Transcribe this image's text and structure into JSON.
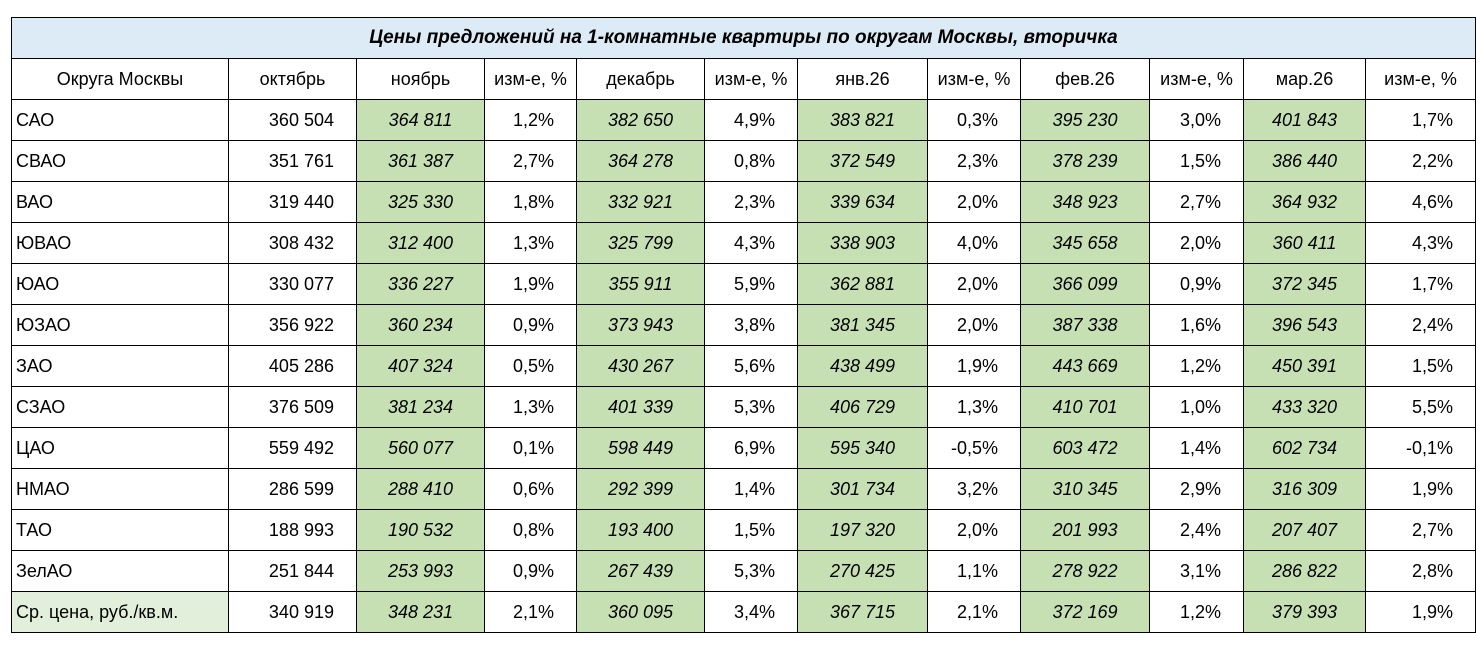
{
  "title": "Цены предложений на 1-комнатные квартиры по округам Москвы, вторичка",
  "headers": [
    "Округа Москвы",
    "октябрь",
    "ноябрь",
    "изм-е, %",
    "декабрь",
    "изм-е, %",
    "янв.26",
    "изм-е, %",
    "фев.26",
    "изм-е, %",
    "мар.26",
    "изм-е, %"
  ],
  "colors": {
    "title_bg": "#DDEBF7",
    "positive": "#C6E0B4",
    "negative": "#F4B084",
    "avg_label_bg": "#E2EFDA"
  },
  "rows": [
    [
      "САО",
      "360 504",
      "364 811",
      "1,2%",
      "382 650",
      "4,9%",
      "383 821",
      "0,3%",
      "395 230",
      "3,0%",
      "401 843",
      "1,7%"
    ],
    [
      "СВАО",
      "351 761",
      "361 387",
      "2,7%",
      "364 278",
      "0,8%",
      "372 549",
      "2,3%",
      "378 239",
      "1,5%",
      "386 440",
      "2,2%"
    ],
    [
      "ВАО",
      "319 440",
      "325 330",
      "1,8%",
      "332 921",
      "2,3%",
      "339 634",
      "2,0%",
      "348 923",
      "2,7%",
      "364 932",
      "4,6%"
    ],
    [
      "ЮВАО",
      "308 432",
      "312 400",
      "1,3%",
      "325 799",
      "4,3%",
      "338 903",
      "4,0%",
      "345 658",
      "2,0%",
      "360 411",
      "4,3%"
    ],
    [
      "ЮАО",
      "330 077",
      "336 227",
      "1,9%",
      "355 911",
      "5,9%",
      "362 881",
      "2,0%",
      "366 099",
      "0,9%",
      "372 345",
      "1,7%"
    ],
    [
      "ЮЗАО",
      "356 922",
      "360 234",
      "0,9%",
      "373 943",
      "3,8%",
      "381 345",
      "2,0%",
      "387 338",
      "1,6%",
      "396 543",
      "2,4%"
    ],
    [
      "ЗАО",
      "405 286",
      "407 324",
      "0,5%",
      "430 267",
      "5,6%",
      "438 499",
      "1,9%",
      "443 669",
      "1,2%",
      "450 391",
      "1,5%"
    ],
    [
      "СЗАО",
      "376 509",
      "381 234",
      "1,3%",
      "401 339",
      "5,3%",
      "406 729",
      "1,3%",
      "410 701",
      "1,0%",
      "433 320",
      "5,5%"
    ],
    [
      "ЦАО",
      "559 492",
      "560 077",
      "0,1%",
      "598 449",
      "6,9%",
      "595 340",
      "-0,5%",
      "603 472",
      "1,4%",
      "602 734",
      "-0,1%"
    ],
    [
      "НМАО",
      "286 599",
      "288 410",
      "0,6%",
      "292 399",
      "1,4%",
      "301 734",
      "3,2%",
      "310 345",
      "2,9%",
      "316 309",
      "1,9%"
    ],
    [
      "ТАО",
      "188 993",
      "190 532",
      "0,8%",
      "193 400",
      "1,5%",
      "197 320",
      "2,0%",
      "201 993",
      "2,4%",
      "207 407",
      "2,7%"
    ],
    [
      "ЗелАО",
      "251 844",
      "253 993",
      "0,9%",
      "267 439",
      "5,3%",
      "270 425",
      "1,1%",
      "278 922",
      "3,1%",
      "286 822",
      "2,8%"
    ],
    [
      "Ср. цена, руб./кв.м.",
      "340 919",
      "348 231",
      "2,1%",
      "360 095",
      "3,4%",
      "367 715",
      "2,1%",
      "372 169",
      "1,2%",
      "379 393",
      "1,9%"
    ]
  ]
}
